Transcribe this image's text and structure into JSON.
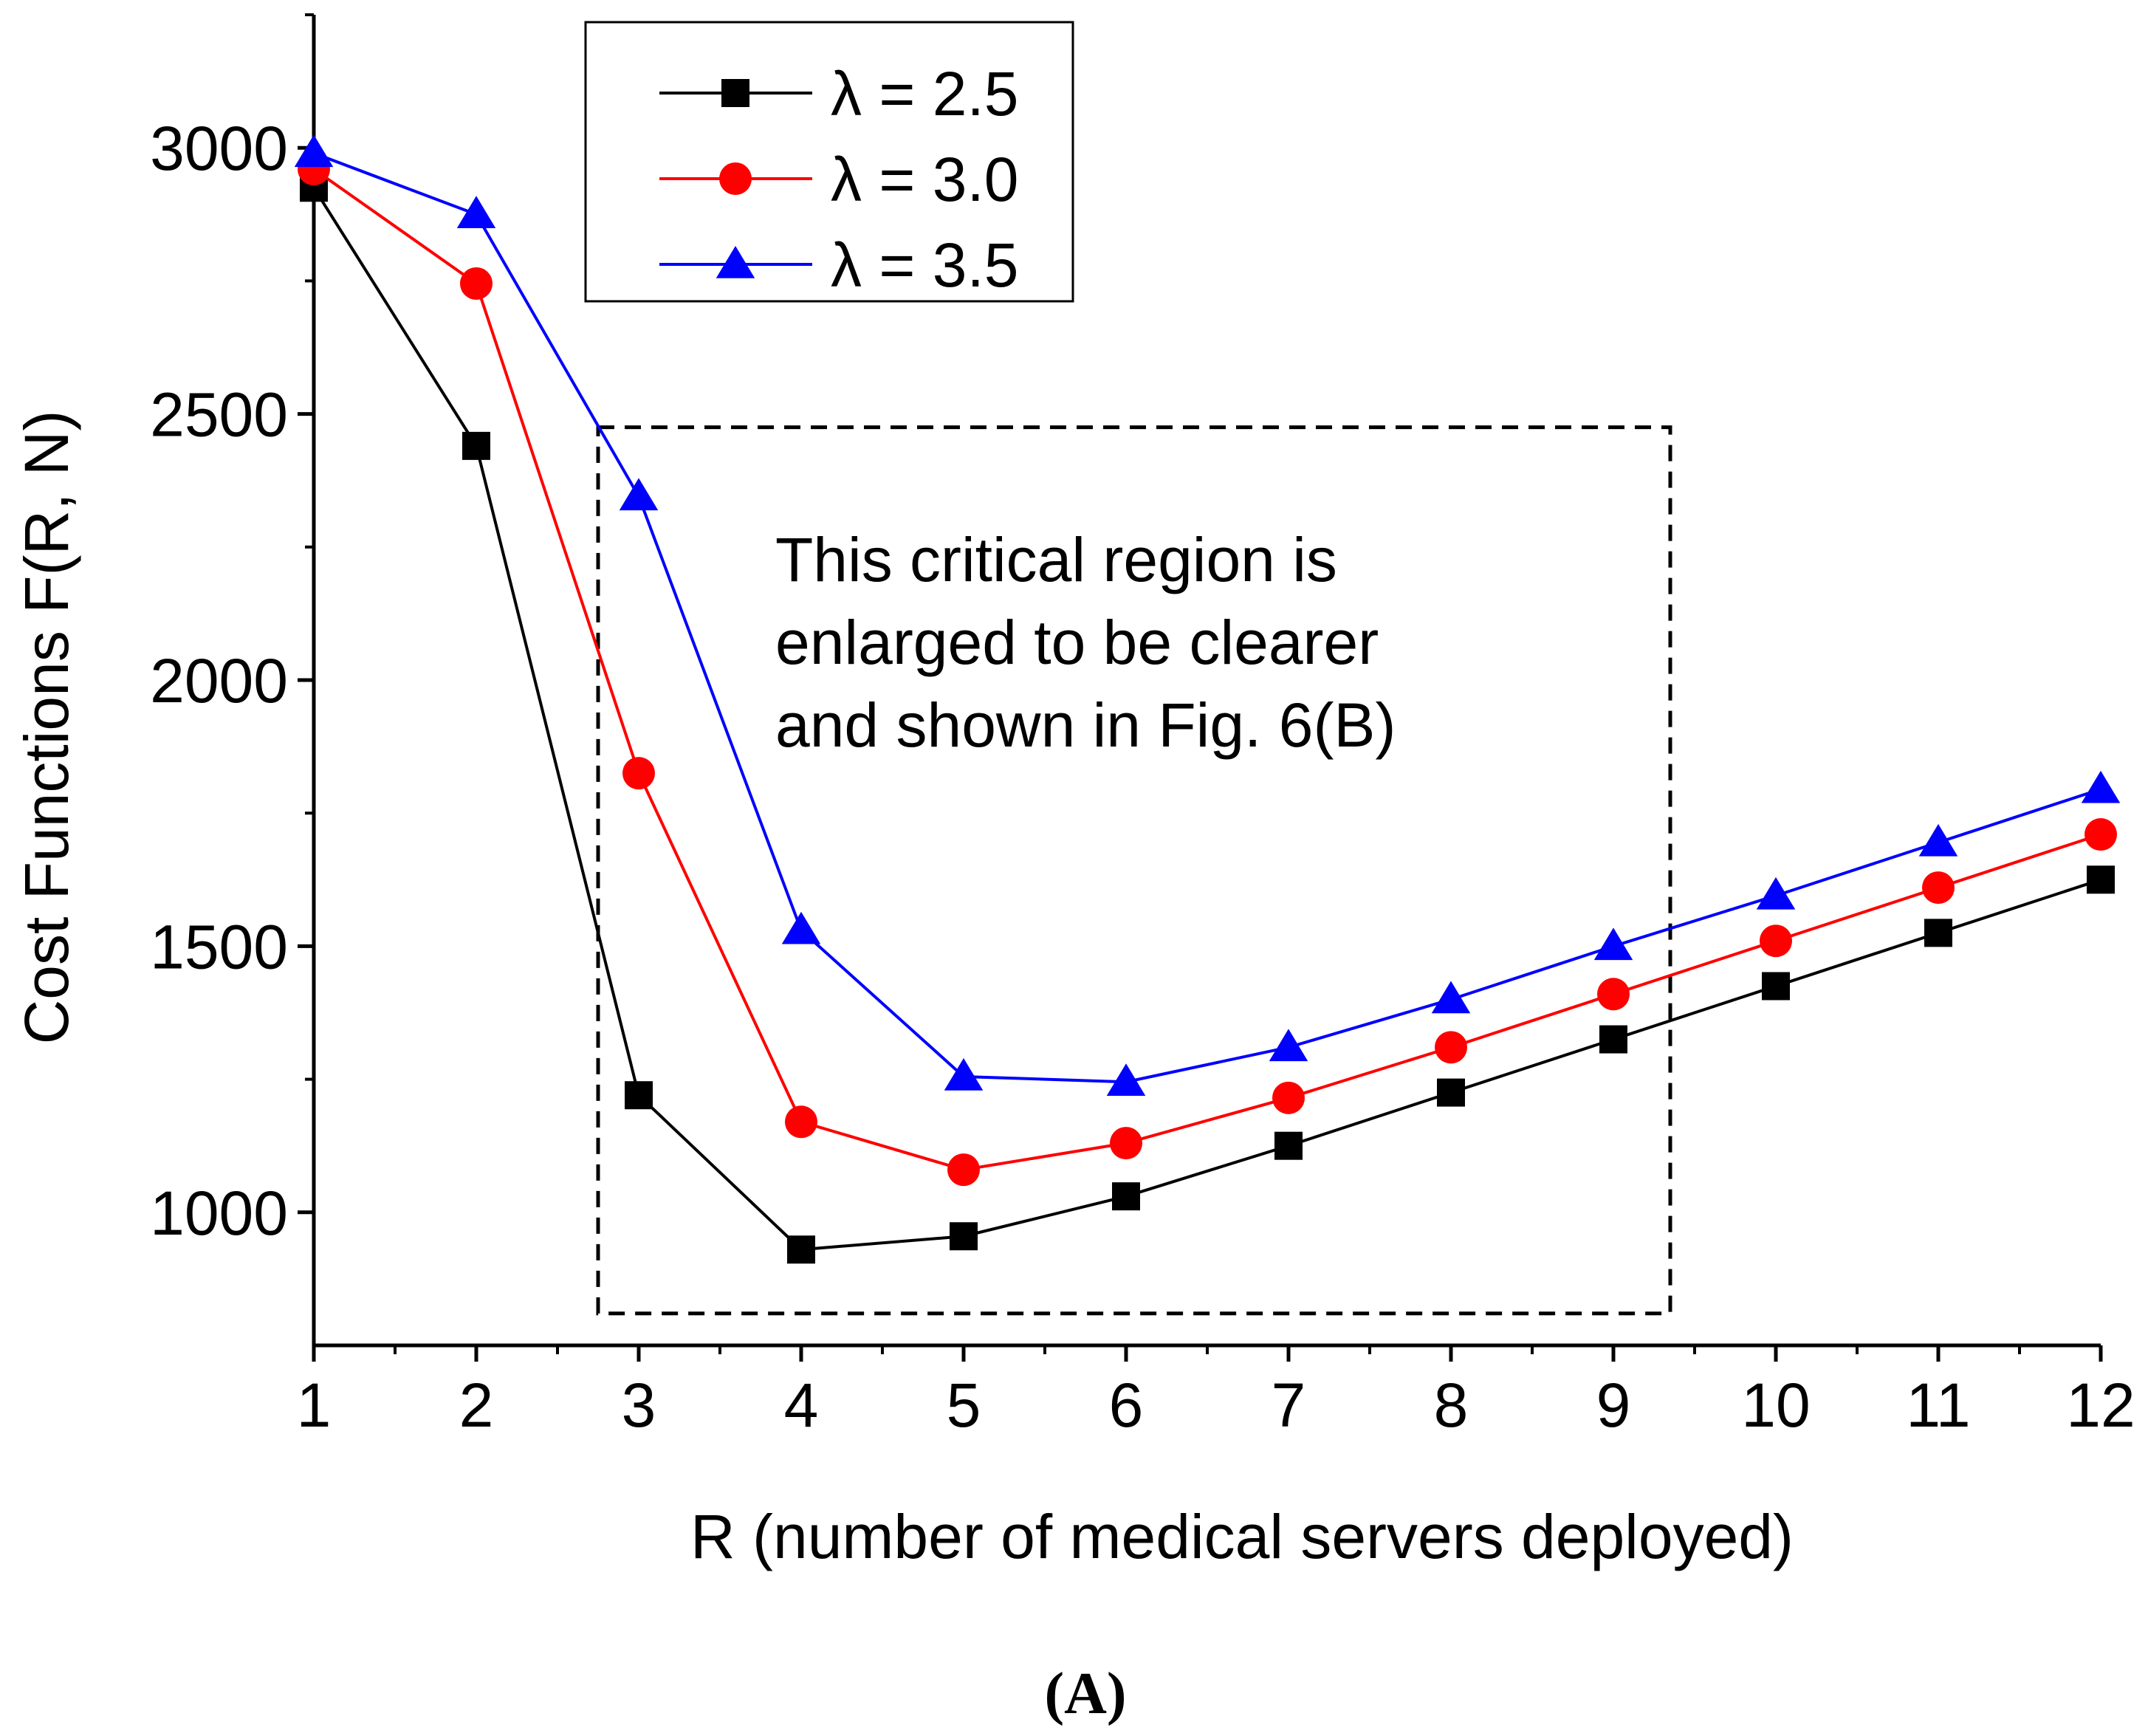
{
  "chart_data": {
    "type": "line",
    "title": "",
    "xlabel": "R (number of medical servers deployed)",
    "ylabel": "Cost Functions F(R, N)",
    "x": [
      1,
      2,
      3,
      4,
      5,
      6,
      7,
      8,
      9,
      10,
      11,
      12
    ],
    "xlim": [
      1,
      12
    ],
    "ylim": [
      750,
      3250
    ],
    "x_ticks": [
      1,
      2,
      3,
      4,
      5,
      6,
      7,
      8,
      9,
      10,
      11,
      12
    ],
    "y_ticks": [
      1000,
      1500,
      2000,
      2500,
      3000
    ],
    "grid": false,
    "legend_position": "top",
    "series": [
      {
        "name": "λ = 2.5",
        "color": "#000000",
        "marker": "square",
        "values": [
          2925,
          2440,
          1220,
          930,
          955,
          1030,
          1125,
          1225,
          1325,
          1425,
          1525,
          1625
        ]
      },
      {
        "name": "λ = 3.0",
        "color": "#ff0000",
        "marker": "circle",
        "values": [
          2960,
          2745,
          1825,
          1170,
          1080,
          1130,
          1215,
          1310,
          1410,
          1510,
          1610,
          1710
        ]
      },
      {
        "name": "λ = 3.5",
        "color": "#0000ff",
        "marker": "triangle",
        "values": [
          2990,
          2875,
          2345,
          1530,
          1255,
          1245,
          1310,
          1400,
          1500,
          1595,
          1695,
          1795
        ]
      }
    ],
    "annotation": {
      "lines": [
        "This critical region is",
        "enlarged to be clearer",
        "and shown in Fig. 6(B)"
      ],
      "region_x": [
        2.75,
        9.35
      ],
      "region_y": [
        810,
        2475
      ]
    },
    "panel_label": "(A)"
  }
}
